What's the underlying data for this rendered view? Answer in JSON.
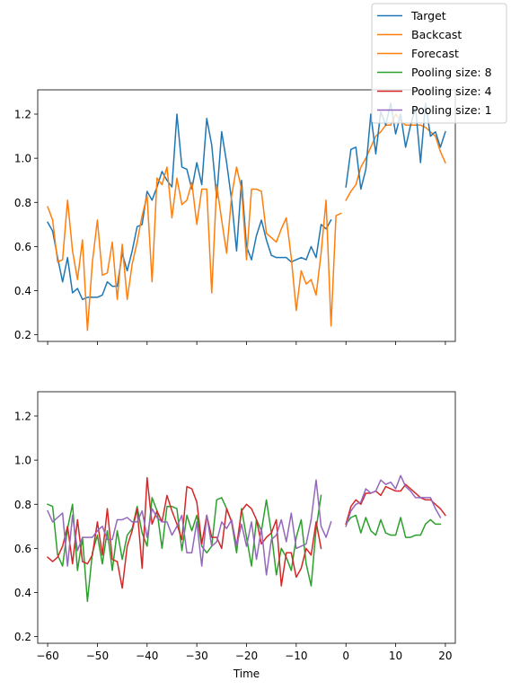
{
  "chart_data": [
    {
      "type": "line",
      "xlim": [
        -62,
        22
      ],
      "ylim": [
        0.17,
        1.31
      ],
      "yticks": [
        0.2,
        0.4,
        0.6,
        0.8,
        1.0,
        1.2
      ],
      "ytick_labels": [
        "0.2",
        "0.4",
        "0.6",
        "0.8",
        "1.0",
        "1.2"
      ],
      "xticks": [
        -60,
        -50,
        -40,
        -30,
        -20,
        -10,
        0,
        10,
        20
      ],
      "show_xtick_labels": false,
      "xlabel": "",
      "series": [
        {
          "name": "Target",
          "color": "#1f77b4",
          "x_start": -60,
          "values": [
            0.71,
            0.67,
            0.55,
            0.44,
            0.55,
            0.39,
            0.41,
            0.36,
            0.37,
            0.37,
            0.37,
            0.38,
            0.44,
            0.42,
            0.42,
            0.57,
            0.49,
            0.58,
            0.69,
            0.7,
            0.85,
            0.81,
            0.87,
            0.94,
            0.9,
            0.87,
            1.2,
            0.96,
            0.95,
            0.86,
            0.98,
            0.88,
            1.18,
            1.06,
            0.82,
            1.12,
            0.98,
            0.81,
            0.58,
            0.9,
            0.6,
            0.54,
            0.65,
            0.72,
            0.63,
            0.56,
            0.55,
            0.55,
            0.55,
            0.53,
            0.54,
            0.55,
            0.54,
            0.6,
            0.55,
            0.7,
            0.68,
            0.72
          ]
        },
        {
          "name": "Backcast",
          "color": "#ff7f0e",
          "x_start": -60,
          "values": [
            0.78,
            0.72,
            0.53,
            0.54,
            0.81,
            0.58,
            0.45,
            0.63,
            0.22,
            0.53,
            0.72,
            0.47,
            0.48,
            0.62,
            0.36,
            0.61,
            0.36,
            0.52,
            0.62,
            0.74,
            0.83,
            0.44,
            0.91,
            0.88,
            0.96,
            0.73,
            0.91,
            0.79,
            0.81,
            0.89,
            0.7,
            0.86,
            0.86,
            0.39,
            0.88,
            0.72,
            0.57,
            0.83,
            0.96,
            0.86,
            0.54,
            0.86,
            0.86,
            0.85,
            0.66,
            0.64,
            0.62,
            0.68,
            0.73,
            0.55,
            0.31,
            0.49,
            0.43,
            0.45,
            0.38,
            0.57,
            0.81,
            0.24,
            0.74,
            0.75
          ]
        },
        {
          "name": "Forecast",
          "color": "#ff7f0e",
          "x_start": 0,
          "values": [
            0.81,
            0.85,
            0.88,
            0.96,
            1.0,
            1.05,
            1.1,
            1.12,
            1.15,
            1.15,
            1.2,
            1.17,
            1.15,
            1.15,
            1.15,
            1.15,
            1.14,
            1.12,
            1.1,
            1.03,
            0.98
          ]
        },
        {
          "name": "Target",
          "color": "#1f77b4",
          "x_start": 0,
          "values": [
            0.87,
            1.04,
            1.05,
            0.86,
            0.95,
            1.2,
            1.02,
            1.21,
            1.15,
            1.25,
            1.11,
            1.2,
            1.05,
            1.15,
            1.23,
            0.98,
            1.25,
            1.1,
            1.12,
            1.05,
            1.12
          ]
        }
      ]
    },
    {
      "type": "line",
      "xlim": [
        -62,
        22
      ],
      "ylim": [
        0.17,
        1.31
      ],
      "yticks": [
        0.2,
        0.4,
        0.6,
        0.8,
        1.0,
        1.2
      ],
      "ytick_labels": [
        "0.2",
        "0.4",
        "0.6",
        "0.8",
        "1.0",
        "1.2"
      ],
      "xticks": [
        -60,
        -50,
        -40,
        -30,
        -20,
        -10,
        0,
        10,
        20
      ],
      "show_xtick_labels": true,
      "xtick_labels": [
        "−60",
        "−50",
        "−40",
        "−30",
        "−20",
        "−10",
        "0",
        "10",
        "20"
      ],
      "xlabel": "Time",
      "series": [
        {
          "name": "Pooling size: 8",
          "color": "#2ca02c",
          "x_start": -60,
          "values": [
            0.8,
            0.79,
            0.57,
            0.52,
            0.69,
            0.8,
            0.5,
            0.65,
            0.36,
            0.58,
            0.66,
            0.53,
            0.68,
            0.5,
            0.68,
            0.55,
            0.66,
            0.69,
            0.79,
            0.67,
            0.61,
            0.83,
            0.77,
            0.6,
            0.79,
            0.79,
            0.78,
            0.59,
            0.75,
            0.68,
            0.75,
            0.61,
            0.58,
            0.61,
            0.82,
            0.83,
            0.78,
            0.72,
            0.58,
            0.78,
            0.65,
            0.52,
            0.73,
            0.68,
            0.82,
            0.67,
            0.48,
            0.6,
            0.56,
            0.5,
            0.65,
            0.73,
            0.53,
            0.43,
            0.69,
            0.84
          ]
        },
        {
          "name": "Pooling size: 4",
          "color": "#d62728",
          "x_start": -60,
          "values": [
            0.56,
            0.54,
            0.56,
            0.61,
            0.7,
            0.53,
            0.73,
            0.54,
            0.53,
            0.57,
            0.72,
            0.57,
            0.78,
            0.55,
            0.54,
            0.42,
            0.61,
            0.68,
            0.78,
            0.51,
            0.92,
            0.71,
            0.77,
            0.72,
            0.84,
            0.77,
            0.71,
            0.64,
            0.88,
            0.87,
            0.81,
            0.62,
            0.75,
            0.65,
            0.65,
            0.6,
            0.78,
            0.72,
            0.61,
            0.77,
            0.8,
            0.78,
            0.73,
            0.62,
            0.65,
            0.67,
            0.73,
            0.43,
            0.58,
            0.58,
            0.47,
            0.51,
            0.6,
            0.57,
            0.72,
            0.6
          ]
        },
        {
          "name": "Pooling size: 1",
          "color": "#9467bd",
          "x_start": -60,
          "values": [
            0.77,
            0.72,
            0.74,
            0.76,
            0.52,
            0.75,
            0.59,
            0.65,
            0.65,
            0.65,
            0.68,
            0.7,
            0.64,
            0.64,
            0.73,
            0.73,
            0.74,
            0.72,
            0.72,
            0.77,
            0.65,
            0.78,
            0.74,
            0.72,
            0.72,
            0.66,
            0.7,
            0.75,
            0.58,
            0.58,
            0.72,
            0.52,
            0.75,
            0.61,
            0.63,
            0.72,
            0.69,
            0.73,
            0.61,
            0.71,
            0.61,
            0.72,
            0.55,
            0.69,
            0.48,
            0.64,
            0.66,
            0.73,
            0.63,
            0.76,
            0.6,
            0.61,
            0.62,
            0.73,
            0.91,
            0.7,
            0.65,
            0.72
          ]
        },
        {
          "name": "Pooling size: 8",
          "color": "#2ca02c",
          "x_start": 0,
          "values": [
            0.71,
            0.74,
            0.75,
            0.67,
            0.74,
            0.68,
            0.66,
            0.73,
            0.67,
            0.66,
            0.66,
            0.74,
            0.65,
            0.65,
            0.66,
            0.66,
            0.71,
            0.73,
            0.71,
            0.71
          ]
        },
        {
          "name": "Pooling size: 4",
          "color": "#d62728",
          "x_start": 0,
          "values": [
            0.71,
            0.79,
            0.82,
            0.8,
            0.85,
            0.85,
            0.86,
            0.84,
            0.88,
            0.87,
            0.86,
            0.86,
            0.89,
            0.87,
            0.85,
            0.83,
            0.82,
            0.82,
            0.8,
            0.78,
            0.75
          ]
        },
        {
          "name": "Pooling size: 1",
          "color": "#9467bd",
          "x_start": 0,
          "values": [
            0.7,
            0.77,
            0.8,
            0.81,
            0.87,
            0.85,
            0.86,
            0.91,
            0.89,
            0.9,
            0.87,
            0.93,
            0.88,
            0.86,
            0.83,
            0.83,
            0.83,
            0.83,
            0.78,
            0.74
          ]
        }
      ]
    }
  ],
  "legend": {
    "placement": "upper-right",
    "entries": [
      {
        "label": "Target",
        "color": "#1f77b4"
      },
      {
        "label": "Backcast",
        "color": "#ff7f0e"
      },
      {
        "label": "Forecast",
        "color": "#ff7f0e"
      },
      {
        "label": "Pooling size: 8",
        "color": "#2ca02c"
      },
      {
        "label": "Pooling size: 4",
        "color": "#d62728"
      },
      {
        "label": "Pooling size: 1",
        "color": "#9467bd"
      }
    ]
  }
}
